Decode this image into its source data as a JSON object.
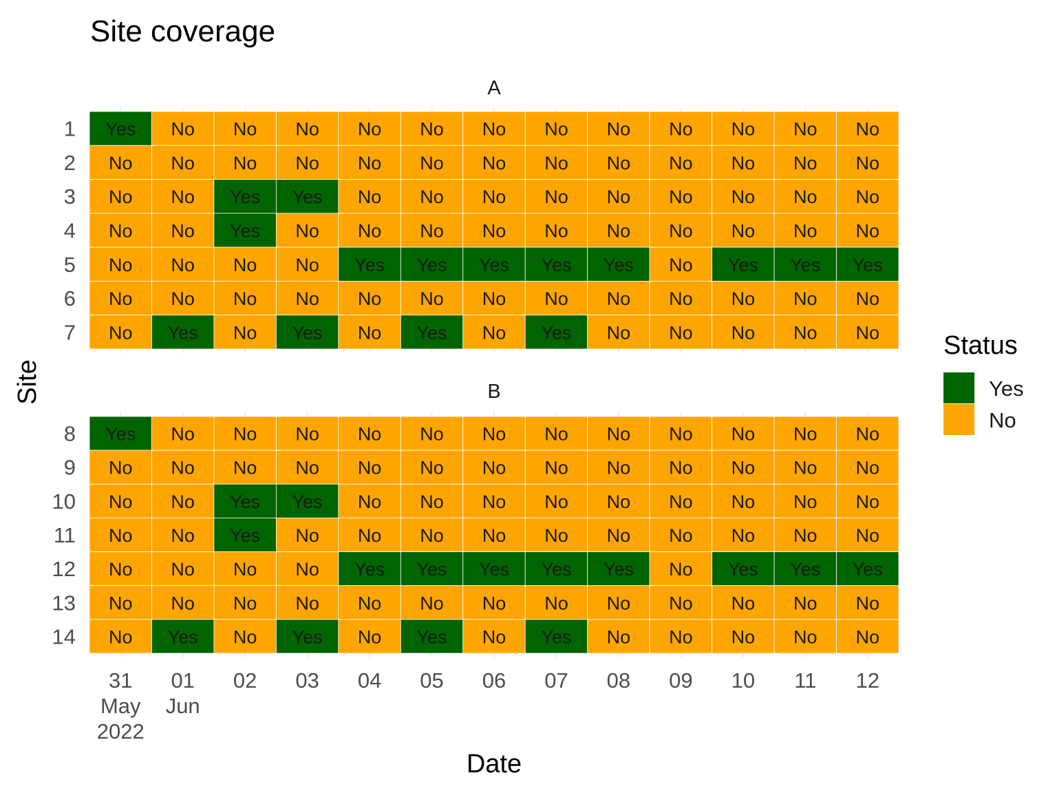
{
  "chart_data": {
    "type": "heatmap",
    "title": "Site coverage",
    "xlabel": "Date",
    "ylabel": "Site",
    "x": [
      "2022-05-31",
      "2022-06-01",
      "2022-06-02",
      "2022-06-03",
      "2022-06-04",
      "2022-06-05",
      "2022-06-06",
      "2022-06-07",
      "2022-06-08",
      "2022-06-09",
      "2022-06-10",
      "2022-06-11",
      "2022-06-12"
    ],
    "x_tick_labels": [
      [
        "31",
        "May",
        "2022"
      ],
      [
        "01",
        "Jun"
      ],
      [
        "02"
      ],
      [
        "03"
      ],
      [
        "04"
      ],
      [
        "05"
      ],
      [
        "06"
      ],
      [
        "07"
      ],
      [
        "08"
      ],
      [
        "09"
      ],
      [
        "10"
      ],
      [
        "11"
      ],
      [
        "12"
      ]
    ],
    "legend": {
      "title": "Status",
      "position": "right",
      "entries": [
        {
          "label": "Yes",
          "color": "#006400"
        },
        {
          "label": "No",
          "color": "#FFA500"
        }
      ]
    },
    "grid": true,
    "facets": [
      {
        "name": "A",
        "sites": [
          "1",
          "2",
          "3",
          "4",
          "5",
          "6",
          "7"
        ],
        "values": [
          [
            "Yes",
            "No",
            "No",
            "No",
            "No",
            "No",
            "No",
            "No",
            "No",
            "No",
            "No",
            "No",
            "No"
          ],
          [
            "No",
            "No",
            "No",
            "No",
            "No",
            "No",
            "No",
            "No",
            "No",
            "No",
            "No",
            "No",
            "No"
          ],
          [
            "No",
            "No",
            "Yes",
            "Yes",
            "No",
            "No",
            "No",
            "No",
            "No",
            "No",
            "No",
            "No",
            "No"
          ],
          [
            "No",
            "No",
            "Yes",
            "No",
            "No",
            "No",
            "No",
            "No",
            "No",
            "No",
            "No",
            "No",
            "No"
          ],
          [
            "No",
            "No",
            "No",
            "No",
            "Yes",
            "Yes",
            "Yes",
            "Yes",
            "Yes",
            "No",
            "Yes",
            "Yes",
            "Yes"
          ],
          [
            "No",
            "No",
            "No",
            "No",
            "No",
            "No",
            "No",
            "No",
            "No",
            "No",
            "No",
            "No",
            "No"
          ],
          [
            "No",
            "Yes",
            "No",
            "Yes",
            "No",
            "Yes",
            "No",
            "Yes",
            "No",
            "No",
            "No",
            "No",
            "No"
          ]
        ]
      },
      {
        "name": "B",
        "sites": [
          "8",
          "9",
          "10",
          "11",
          "12",
          "13",
          "14"
        ],
        "values": [
          [
            "Yes",
            "No",
            "No",
            "No",
            "No",
            "No",
            "No",
            "No",
            "No",
            "No",
            "No",
            "No",
            "No"
          ],
          [
            "No",
            "No",
            "No",
            "No",
            "No",
            "No",
            "No",
            "No",
            "No",
            "No",
            "No",
            "No",
            "No"
          ],
          [
            "No",
            "No",
            "Yes",
            "Yes",
            "No",
            "No",
            "No",
            "No",
            "No",
            "No",
            "No",
            "No",
            "No"
          ],
          [
            "No",
            "No",
            "Yes",
            "No",
            "No",
            "No",
            "No",
            "No",
            "No",
            "No",
            "No",
            "No",
            "No"
          ],
          [
            "No",
            "No",
            "No",
            "No",
            "Yes",
            "Yes",
            "Yes",
            "Yes",
            "Yes",
            "No",
            "Yes",
            "Yes",
            "Yes"
          ],
          [
            "No",
            "No",
            "No",
            "No",
            "No",
            "No",
            "No",
            "No",
            "No",
            "No",
            "No",
            "No",
            "No"
          ],
          [
            "No",
            "Yes",
            "No",
            "Yes",
            "No",
            "Yes",
            "No",
            "Yes",
            "No",
            "No",
            "No",
            "No",
            "No"
          ]
        ]
      }
    ]
  }
}
